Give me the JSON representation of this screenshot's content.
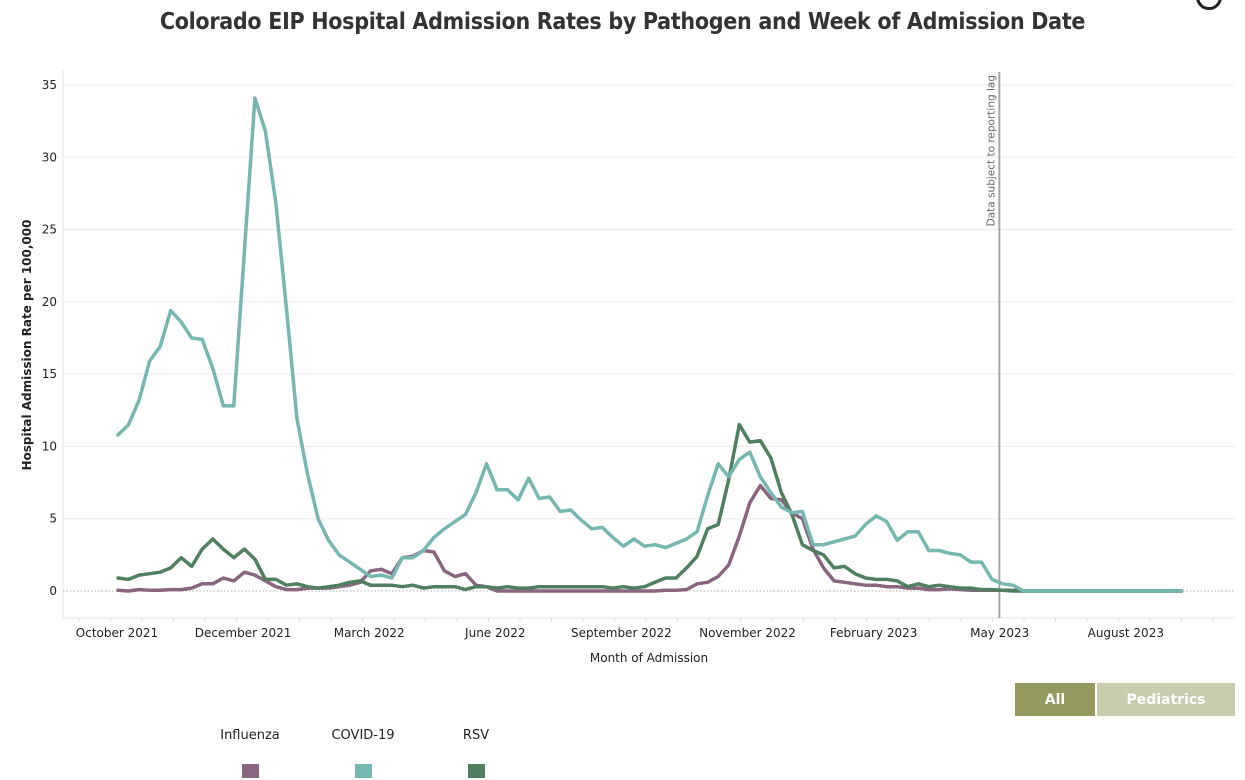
{
  "header": {
    "title": "Colorado EIP Hospital Admission Rates by Pathogen and Week of Admission Date"
  },
  "filters": {
    "buttons": [
      {
        "label": "All",
        "selected": true
      },
      {
        "label": "Pediatrics",
        "selected": false
      }
    ]
  },
  "legend": {
    "items": [
      {
        "label": "Influenza",
        "color": "#8a6580"
      },
      {
        "label": "COVID-19",
        "color": "#76b7b0"
      },
      {
        "label": "RSV",
        "color": "#4f7f5e"
      }
    ]
  },
  "chart_data": {
    "type": "line",
    "title": "Colorado EIP Hospital Admission Rates by Pathogen and Week of Admission Date",
    "xlabel": "Month of Admission",
    "ylabel": "Hospital Admission Rate per 100,000",
    "ylim": [
      0,
      35
    ],
    "yticks": [
      0,
      5,
      10,
      15,
      20,
      25,
      30,
      35
    ],
    "xtick_labels": [
      "October 2021",
      "December 2021",
      "March 2022",
      "June 2022",
      "September 2022",
      "November 2022",
      "February 2023",
      "May 2023",
      "August 2023"
    ],
    "x_unit": "week index (weekly admission dates, starting early October 2021)",
    "grid": true,
    "annotation": {
      "text": "Data subject to reporting lag",
      "at_week_index": 83.7
    },
    "legend_position": "bottom-left",
    "series": [
      {
        "name": "Influenza",
        "color": "#8a6580",
        "values": [
          0.05,
          0.0,
          0.1,
          0.05,
          0.05,
          0.1,
          0.1,
          0.2,
          0.5,
          0.5,
          0.9,
          0.7,
          1.3,
          1.1,
          0.7,
          0.3,
          0.1,
          0.1,
          0.2,
          0.2,
          0.2,
          0.3,
          0.4,
          0.6,
          1.4,
          1.5,
          1.2,
          2.3,
          2.4,
          2.8,
          2.7,
          1.4,
          1.0,
          1.2,
          0.4,
          0.3,
          0.0,
          0.0,
          0.0,
          0.0,
          0.0,
          0.0,
          0.0,
          0.0,
          0.0,
          0.0,
          0.0,
          0.0,
          0.0,
          0.0,
          0.0,
          0.0,
          0.05,
          0.05,
          0.1,
          0.5,
          0.6,
          1.0,
          1.8,
          3.8,
          6.1,
          7.3,
          6.4,
          6.3,
          5.4,
          5.0,
          2.9,
          1.6,
          0.7,
          0.6,
          0.5,
          0.4,
          0.4,
          0.3,
          0.3,
          0.2,
          0.2,
          0.1,
          0.1,
          0.15,
          0.1,
          0.05,
          0.05,
          0.05,
          0.05,
          0.05,
          0.0,
          0.0,
          0.0,
          0.0,
          0.0,
          0.0,
          0.0,
          0.0,
          0.0,
          0.0,
          0.0,
          0.0,
          0.0,
          0.0,
          0.0,
          0.0
        ]
      },
      {
        "name": "COVID-19",
        "color": "#76b7b0",
        "values": [
          10.8,
          11.5,
          13.2,
          15.9,
          16.9,
          19.4,
          18.6,
          17.5,
          17.4,
          15.4,
          12.8,
          12.8,
          23.5,
          34.1,
          31.8,
          26.8,
          19.5,
          11.9,
          8.1,
          5.0,
          3.5,
          2.5,
          2.0,
          1.5,
          1.0,
          1.1,
          0.9,
          2.3,
          2.3,
          2.8,
          3.7,
          4.3,
          4.8,
          5.3,
          6.8,
          8.8,
          7.0,
          7.0,
          6.3,
          7.8,
          6.4,
          6.5,
          5.5,
          5.6,
          4.9,
          4.3,
          4.4,
          3.7,
          3.1,
          3.6,
          3.1,
          3.2,
          3.0,
          3.3,
          3.6,
          4.1,
          6.6,
          8.8,
          7.9,
          9.1,
          9.6,
          7.9,
          6.8,
          5.8,
          5.4,
          5.5,
          3.2,
          3.2,
          3.4,
          3.6,
          3.8,
          4.6,
          5.2,
          4.8,
          3.5,
          4.1,
          4.1,
          2.8,
          2.8,
          2.6,
          2.5,
          2.0,
          2.0,
          0.8,
          0.5,
          0.4,
          0.0,
          0.0,
          0.0,
          0.0,
          0.0,
          0.0,
          0.0,
          0.0,
          0.0,
          0.0,
          0.0,
          0.0,
          0.0,
          0.0,
          0.0,
          0.0
        ]
      },
      {
        "name": "RSV",
        "color": "#4f7f5e",
        "values": [
          0.9,
          0.8,
          1.1,
          1.2,
          1.3,
          1.6,
          2.3,
          1.7,
          2.9,
          3.6,
          2.9,
          2.3,
          2.9,
          2.2,
          0.8,
          0.8,
          0.4,
          0.5,
          0.3,
          0.2,
          0.3,
          0.4,
          0.6,
          0.7,
          0.4,
          0.4,
          0.4,
          0.3,
          0.4,
          0.2,
          0.3,
          0.3,
          0.3,
          0.1,
          0.3,
          0.3,
          0.2,
          0.3,
          0.2,
          0.2,
          0.3,
          0.3,
          0.3,
          0.3,
          0.3,
          0.3,
          0.3,
          0.2,
          0.3,
          0.2,
          0.3,
          0.6,
          0.9,
          0.9,
          1.6,
          2.4,
          4.3,
          4.6,
          7.7,
          11.5,
          10.3,
          10.4,
          9.2,
          6.8,
          5.3,
          3.2,
          2.8,
          2.5,
          1.6,
          1.7,
          1.2,
          0.9,
          0.8,
          0.8,
          0.7,
          0.3,
          0.5,
          0.3,
          0.4,
          0.3,
          0.2,
          0.2,
          0.1,
          0.1,
          0.05,
          0.0,
          0.0,
          0.0,
          0.0,
          0.0,
          0.0,
          0.0,
          0.0,
          0.0,
          0.0,
          0.0,
          0.0,
          0.0,
          0.0,
          0.0,
          0.0,
          0.0
        ]
      }
    ]
  }
}
